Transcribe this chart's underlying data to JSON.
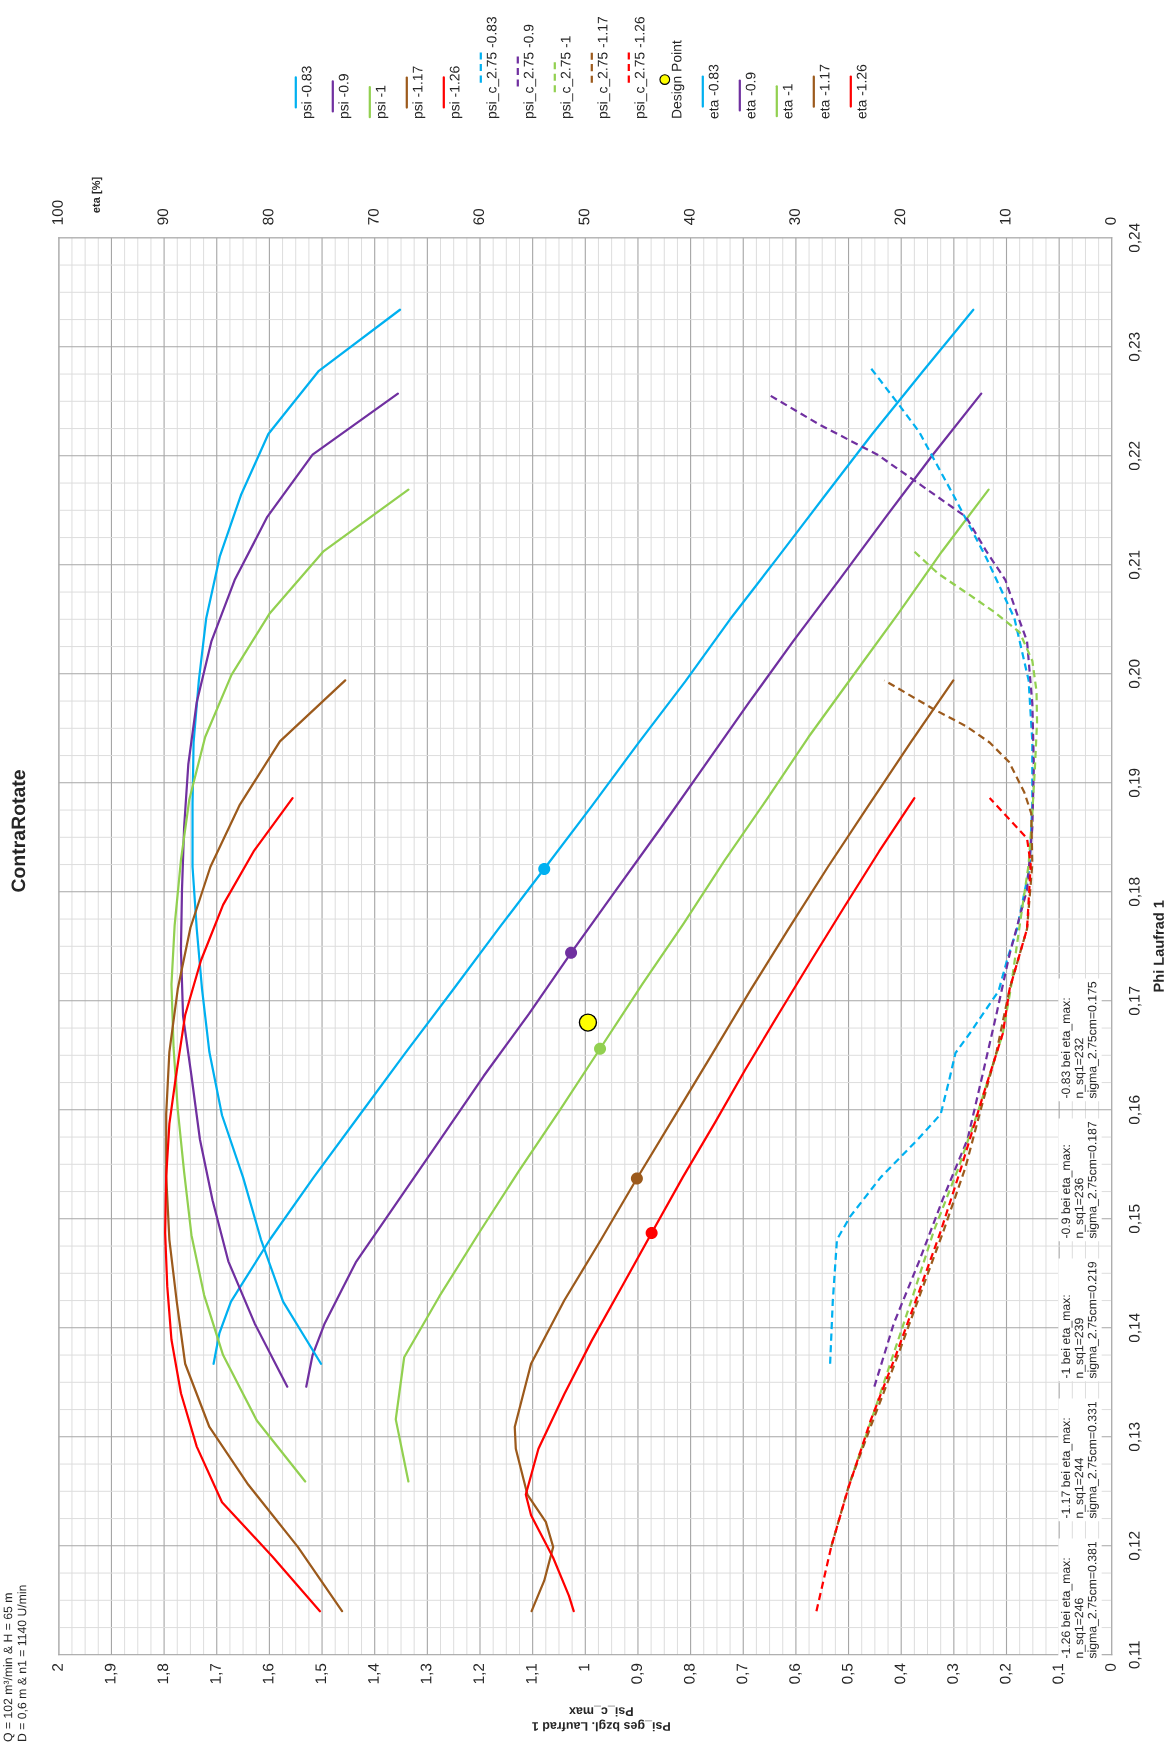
{
  "chart_data": {
    "type": "line",
    "title": "ContraRotate",
    "xlabel": "Psi_ges bzgl. Laufrad 1\nPsi_c_max",
    "x2label": "eta [%]",
    "ylabel": "Phi Laufrad 1",
    "xlim": [
      2,
      0
    ],
    "xticks": [
      2,
      {
        "value": 1.9,
        "label": "1,9"
      },
      {
        "value": 1.8,
        "label": "1,8"
      },
      {
        "value": 1.7,
        "label": "1,7"
      },
      {
        "value": 1.6,
        "label": "1,6"
      },
      {
        "value": 1.5,
        "label": "1,5"
      },
      {
        "value": 1.4,
        "label": "1,4"
      },
      {
        "value": 1.3,
        "label": "1,3"
      },
      {
        "value": 1.2,
        "label": "1,2"
      },
      {
        "value": 1.1,
        "label": "1,1"
      },
      1,
      {
        "value": 0.9,
        "label": "0,9"
      },
      {
        "value": 0.8,
        "label": "0,8"
      },
      {
        "value": 0.7,
        "label": "0,7"
      },
      {
        "value": 0.6,
        "label": "0,6"
      },
      {
        "value": 0.5,
        "label": "0,5"
      },
      {
        "value": 0.4,
        "label": "0,4"
      },
      {
        "value": 0.3,
        "label": "0,3"
      },
      {
        "value": 0.2,
        "label": "0,2"
      },
      {
        "value": 0.1,
        "label": "0,1"
      },
      0
    ],
    "x2lim": [
      100,
      0
    ],
    "x2ticks": [
      100,
      90,
      80,
      70,
      60,
      50,
      40,
      30,
      20,
      10,
      0
    ],
    "ylim": [
      0.11,
      0.24
    ],
    "yticks": [
      {
        "value": 0.11,
        "label": "0,11"
      },
      {
        "value": 0.12,
        "label": "0,12"
      },
      {
        "value": 0.13,
        "label": "0,13"
      },
      {
        "value": 0.14,
        "label": "0,14"
      },
      {
        "value": 0.15,
        "label": "0,15"
      },
      {
        "value": 0.16,
        "label": "0,16"
      },
      {
        "value": 0.17,
        "label": "0,17"
      },
      {
        "value": 0.18,
        "label": "0,18"
      },
      {
        "value": 0.19,
        "label": "0,19"
      },
      {
        "value": 0.2,
        "label": "0,20"
      },
      {
        "value": 0.21,
        "label": "0,21"
      },
      {
        "value": 0.22,
        "label": "0,22"
      },
      {
        "value": 0.23,
        "label": "0,23"
      },
      {
        "value": 0.24,
        "label": "0,24"
      }
    ],
    "grid": true,
    "legend": "top",
    "series": [
      {
        "name": "psi -0.83",
        "color": "#00b0f0",
        "x": [
          1.706,
          1.695,
          1.673,
          1.599,
          1.516,
          1.429,
          1.342,
          1.253,
          1.165,
          1.075,
          0.987,
          0.9,
          0.81,
          0.725,
          0.634,
          0.544,
          0.455,
          0.358,
          0.263
        ],
        "values": [
          0.1367,
          0.1395,
          0.1424,
          0.1481,
          0.1538,
          0.1595,
          0.1652,
          0.1709,
          0.1766,
          0.1823,
          0.1879,
          0.1936,
          0.1993,
          0.205,
          0.2107,
          0.2164,
          0.222,
          0.2278,
          0.2334
        ]
      },
      {
        "name": "psi -0.9",
        "color": "#7030a0",
        "x": [
          1.53,
          1.518,
          1.495,
          1.436,
          1.355,
          1.275,
          1.193,
          1.107,
          1.027,
          0.941,
          0.856,
          0.773,
          0.69,
          0.605,
          0.518,
          0.429,
          0.34,
          0.248
        ],
        "values": [
          0.1346,
          0.1375,
          0.1404,
          0.146,
          0.1517,
          0.1573,
          0.1631,
          0.1688,
          0.1744,
          0.1802,
          0.1859,
          0.1916,
          0.1973,
          0.203,
          0.2086,
          0.2144,
          0.2201,
          0.2257
        ]
      },
      {
        "name": "psi -1",
        "color": "#92d050",
        "x": [
          1.336,
          1.36,
          1.344,
          1.277,
          1.202,
          1.126,
          1.048,
          0.972,
          0.892,
          0.813,
          0.735,
          0.655,
          0.576,
          0.492,
          0.406,
          0.323,
          0.234
        ],
        "values": [
          0.1259,
          0.1316,
          0.1373,
          0.1429,
          0.1487,
          0.1544,
          0.16,
          0.1656,
          0.1715,
          0.1771,
          0.1829,
          0.1885,
          0.1942,
          0.1998,
          0.2055,
          0.2112,
          0.2169
        ]
      },
      {
        "name": "psi -1.17",
        "color": "#9c5a1c",
        "x": [
          1.102,
          1.078,
          1.061,
          1.075,
          1.11,
          1.132,
          1.134,
          1.103,
          1.04,
          0.97,
          0.902,
          0.828,
          0.758,
          0.686,
          0.614,
          0.539,
          0.461,
          0.382,
          0.301
        ],
        "values": [
          0.114,
          0.1168,
          0.1199,
          0.1222,
          0.1247,
          0.1289,
          0.1309,
          0.1367,
          0.1425,
          0.1481,
          0.1537,
          0.1596,
          0.1652,
          0.171,
          0.1766,
          0.1823,
          0.188,
          0.1937,
          0.1994
        ]
      },
      {
        "name": "psi -1.26",
        "color": "#ff0000",
        "x": [
          1.022,
          1.031,
          1.061,
          1.103,
          1.113,
          1.089,
          1.04,
          0.988,
          0.929,
          0.874,
          0.815,
          0.754,
          0.696,
          0.634,
          0.571,
          0.507,
          0.442,
          0.375
        ],
        "values": [
          0.114,
          0.1154,
          0.1189,
          0.1228,
          0.1247,
          0.1289,
          0.1339,
          0.1388,
          0.1439,
          0.1487,
          0.1538,
          0.1588,
          0.1637,
          0.1687,
          0.1737,
          0.1787,
          0.1837,
          0.1886
        ]
      },
      {
        "name": "psi_c_2.75 -0.83",
        "color": "#00b0f0",
        "line_style": "dashed",
        "x": [
          0.535,
          0.53,
          0.522,
          0.497,
          0.439,
          0.372,
          0.325,
          0.308,
          0.297,
          0.27,
          0.215,
          0.198,
          0.18,
          0.156,
          0.151,
          0.151,
          0.158,
          0.185,
          0.239,
          0.301,
          0.366,
          0.403,
          0.457
        ],
        "values": [
          0.1367,
          0.1424,
          0.1481,
          0.1502,
          0.1538,
          0.1571,
          0.1596,
          0.1629,
          0.1652,
          0.167,
          0.1709,
          0.1739,
          0.1766,
          0.1823,
          0.188,
          0.1938,
          0.1994,
          0.2051,
          0.2107,
          0.2164,
          0.2222,
          0.2246,
          0.228
        ]
      },
      {
        "name": "psi_c_2.75 -0.9",
        "color": "#7030a0",
        "line_style": "dashed",
        "x": [
          0.451,
          0.414,
          0.366,
          0.321,
          0.274,
          0.246,
          0.219,
          0.194,
          0.161,
          0.151,
          0.148,
          0.151,
          0.161,
          0.18,
          0.202,
          0.239,
          0.277,
          0.374,
          0.445,
          0.553,
          0.655
        ],
        "values": [
          0.1346,
          0.1404,
          0.1461,
          0.1518,
          0.1573,
          0.1631,
          0.1688,
          0.1743,
          0.1802,
          0.1859,
          0.1916,
          0.1973,
          0.203,
          0.2055,
          0.2086,
          0.2113,
          0.2144,
          0.2177,
          0.2201,
          0.2228,
          0.2257
        ]
      },
      {
        "name": "psi_c_2.75 -1",
        "color": "#92d050",
        "line_style": "dashed",
        "x": [
          0.497,
          0.457,
          0.418,
          0.376,
          0.338,
          0.291,
          0.253,
          0.207,
          0.192,
          0.175,
          0.158,
          0.151,
          0.146,
          0.142,
          0.143,
          0.151,
          0.175,
          0.224,
          0.272,
          0.33,
          0.377
        ],
        "values": [
          0.1259,
          0.1315,
          0.1371,
          0.1432,
          0.1489,
          0.1547,
          0.16,
          0.167,
          0.1711,
          0.1769,
          0.1825,
          0.1872,
          0.1914,
          0.1956,
          0.1984,
          0.2012,
          0.2038,
          0.2057,
          0.2073,
          0.2092,
          0.2113
        ]
      },
      {
        "name": "psi_c_2.75 -1.17",
        "color": "#9c5a1c",
        "line_style": "dashed",
        "x": [
          0.533,
          0.499,
          0.452,
          0.406,
          0.363,
          0.321,
          0.278,
          0.249,
          0.219,
          0.194,
          0.161,
          0.151,
          0.153,
          0.166,
          0.195,
          0.232,
          0.277,
          0.34,
          0.432
        ],
        "values": [
          0.1199,
          0.1256,
          0.1317,
          0.1375,
          0.1432,
          0.1487,
          0.1547,
          0.16,
          0.1653,
          0.1711,
          0.1766,
          0.1825,
          0.1872,
          0.1891,
          0.1919,
          0.1937,
          0.1952,
          0.1968,
          0.1994
        ]
      },
      {
        "name": "psi_c_2.75 -1.26",
        "color": "#ff0000",
        "line_style": "dashed",
        "x": [
          0.561,
          0.533,
          0.501,
          0.458,
          0.41,
          0.367,
          0.326,
          0.286,
          0.242,
          0.207,
          0.194,
          0.161,
          0.154,
          0.161,
          0.232
        ],
        "values": [
          0.114,
          0.1199,
          0.1252,
          0.1315,
          0.1375,
          0.1432,
          0.1487,
          0.1547,
          0.1617,
          0.167,
          0.1711,
          0.1766,
          0.1825,
          0.1849,
          0.1886
        ]
      },
      {
        "name": "Design Point",
        "type": "scatter",
        "marker": "circle",
        "color": "#ffff00",
        "x": [
          0.995
        ],
        "values": [
          0.168
        ]
      },
      {
        "name": "eta -0.83",
        "axis": "x2",
        "color": "#00b0f0",
        "x": [
          75.1,
          78.7,
          80.8,
          82.5,
          84.5,
          85.7,
          86.4,
          86.9,
          87.3,
          87.3,
          87.2,
          86.7,
          86.0,
          84.7,
          82.7,
          80.1,
          75.3,
          67.6
        ],
        "values": [
          0.1367,
          0.1424,
          0.1481,
          0.1538,
          0.1595,
          0.1653,
          0.1711,
          0.1766,
          0.1823,
          0.188,
          0.1937,
          0.1994,
          0.2051,
          0.2108,
          0.2164,
          0.222,
          0.2278,
          0.2334
        ]
      },
      {
        "name": "eta -0.9",
        "axis": "x2",
        "color": "#7030a0",
        "x": [
          78.3,
          81.4,
          83.9,
          85.4,
          86.6,
          87.4,
          88.2,
          88.4,
          88.3,
          88.1,
          87.7,
          86.9,
          85.5,
          83.3,
          80.2,
          75.9,
          67.8
        ],
        "values": [
          0.1346,
          0.1404,
          0.1461,
          0.1517,
          0.1573,
          0.1631,
          0.1686,
          0.1747,
          0.1802,
          0.1859,
          0.1917,
          0.1974,
          0.203,
          0.2086,
          0.2144,
          0.2201,
          0.2257
        ]
      },
      {
        "name": "eta -1",
        "axis": "x2",
        "color": "#92d050",
        "x": [
          76.6,
          81.2,
          84.4,
          86.2,
          87.4,
          88.1,
          88.7,
          89.1,
          89.3,
          89.0,
          88.4,
          87.6,
          86.1,
          83.6,
          80.0,
          74.9,
          66.8
        ],
        "values": [
          0.1259,
          0.1315,
          0.1375,
          0.143,
          0.1485,
          0.1543,
          0.16,
          0.1657,
          0.1715,
          0.1769,
          0.1829,
          0.1885,
          0.1942,
          0.1999,
          0.2055,
          0.2112,
          0.2169
        ]
      },
      {
        "name": "eta -1.17",
        "axis": "x2",
        "color": "#9c5a1c",
        "x": [
          73.1,
          77.3,
          82.0,
          85.7,
          88.0,
          88.8,
          89.5,
          89.8,
          89.8,
          89.5,
          88.7,
          87.5,
          85.6,
          82.8,
          79.0,
          72.8
        ],
        "values": [
          0.114,
          0.1199,
          0.1256,
          0.1309,
          0.1367,
          0.1424,
          0.1481,
          0.1539,
          0.1596,
          0.1653,
          0.1711,
          0.1767,
          0.1823,
          0.188,
          0.1938,
          0.1994
        ]
      },
      {
        "name": "eta -1.26",
        "axis": "x2",
        "color": "#ff0000",
        "x": [
          75.2,
          79.7,
          84.5,
          86.9,
          88.4,
          89.3,
          89.7,
          89.9,
          89.8,
          89.5,
          88.9,
          88.0,
          86.5,
          84.4,
          81.5,
          77.8
        ],
        "values": [
          0.114,
          0.119,
          0.124,
          0.1291,
          0.134,
          0.1389,
          0.1438,
          0.1487,
          0.1539,
          0.1587,
          0.1629,
          0.1687,
          0.1737,
          0.1788,
          0.1837,
          0.1886
        ]
      },
      {
        "type": "scatter",
        "marker": "circle",
        "colors": [
          "#00b0f0",
          "#7030a0",
          "#92d050",
          "#9c5a1c",
          "#ff0000"
        ],
        "x": [
          1.078,
          1.027,
          0.972,
          0.902,
          0.874
        ],
        "values": [
          0.1821,
          0.1744,
          0.1656,
          0.1537,
          0.1487
        ]
      }
    ],
    "annotations": [
      "Q = 102 m³/min & H = 65 m\nD = 0,6 m & n1 = 1140 U/min",
      "-1.26 bei eta_max:\nn_sq1=246\nsigma_2.75cm=0.381",
      "-1.17 bei eta_max:\nn_sq1=244\nsigma_2.75cm=0.331",
      "-1 bei eta_max:\nn_sq1=239\nsigma_2.75cm=0.219",
      "-0.9 bei eta_max:\nn_sq1=236\nsigma_2.75cm=0.187",
      "-0.83 bei eta_max:\nn_sq1=232\nsigma_2.75cm=0.175"
    ]
  }
}
